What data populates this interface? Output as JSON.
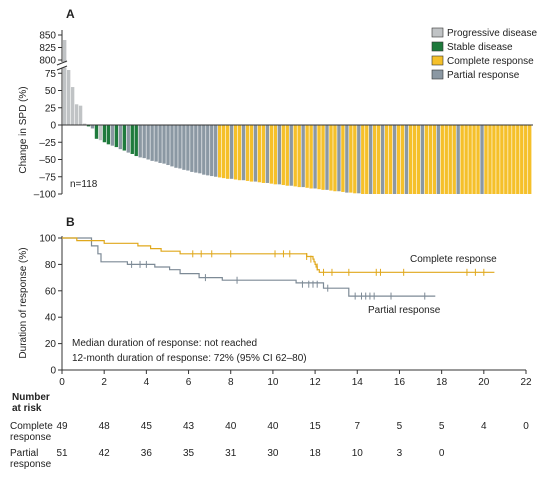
{
  "colors": {
    "progressive": "#c0c3c5",
    "stable": "#1e7a3c",
    "complete": "#f5c02a",
    "partial": "#8b98a3",
    "axis": "#333333",
    "cr_curve": "#e0a81c",
    "pr_curve": "#7d8a96"
  },
  "chart_data": [
    {
      "panel": "A",
      "type": "bar",
      "ylabel": "Change in SPD (%)",
      "y_ticks_lower": [
        "–100",
        "–75",
        "–50",
        "–25",
        "0",
        "25",
        "50",
        "75"
      ],
      "y_ticks_upper": [
        "800",
        "825",
        "850"
      ],
      "ylim_lower": [
        -100,
        90
      ],
      "ylim_upper": [
        795,
        855
      ],
      "axis_break": true,
      "annotation": "n=118",
      "legend_position": "top-right",
      "legend": [
        {
          "key": "progressive",
          "label": "Progressive disease"
        },
        {
          "key": "stable",
          "label": "Stable disease"
        },
        {
          "key": "complete",
          "label": "Complete response"
        },
        {
          "key": "partial",
          "label": "Partial response"
        }
      ],
      "bars": [
        {
          "v": 840,
          "c": "P"
        },
        {
          "v": 780,
          "c": "P"
        },
        {
          "v": 55,
          "c": "P"
        },
        {
          "v": 30,
          "c": "P"
        },
        {
          "v": 28,
          "c": "P"
        },
        {
          "v": 2,
          "c": "P"
        },
        {
          "v": -2,
          "c": "S"
        },
        {
          "v": -5,
          "c": "R"
        },
        {
          "v": -20,
          "c": "S"
        },
        {
          "v": -22,
          "c": "P"
        },
        {
          "v": -25,
          "c": "S"
        },
        {
          "v": -28,
          "c": "S"
        },
        {
          "v": -30,
          "c": "R"
        },
        {
          "v": -32,
          "c": "S"
        },
        {
          "v": -35,
          "c": "R"
        },
        {
          "v": -37,
          "c": "S"
        },
        {
          "v": -40,
          "c": "R"
        },
        {
          "v": -42,
          "c": "S"
        },
        {
          "v": -45,
          "c": "S"
        },
        {
          "v": -47,
          "c": "R"
        },
        {
          "v": -48,
          "c": "R"
        },
        {
          "v": -50,
          "c": "R"
        },
        {
          "v": -52,
          "c": "R"
        },
        {
          "v": -53,
          "c": "R"
        },
        {
          "v": -55,
          "c": "R"
        },
        {
          "v": -56,
          "c": "R"
        },
        {
          "v": -58,
          "c": "R"
        },
        {
          "v": -60,
          "c": "R"
        },
        {
          "v": -62,
          "c": "R"
        },
        {
          "v": -63,
          "c": "R"
        },
        {
          "v": -65,
          "c": "R"
        },
        {
          "v": -66,
          "c": "R"
        },
        {
          "v": -68,
          "c": "R"
        },
        {
          "v": -69,
          "c": "R"
        },
        {
          "v": -70,
          "c": "R"
        },
        {
          "v": -72,
          "c": "R"
        },
        {
          "v": -73,
          "c": "R"
        },
        {
          "v": -74,
          "c": "R"
        },
        {
          "v": -75,
          "c": "R"
        },
        {
          "v": -76,
          "c": "C"
        },
        {
          "v": -77,
          "c": "C"
        },
        {
          "v": -78,
          "c": "C"
        },
        {
          "v": -78,
          "c": "R"
        },
        {
          "v": -79,
          "c": "C"
        },
        {
          "v": -80,
          "c": "C"
        },
        {
          "v": -80,
          "c": "R"
        },
        {
          "v": -81,
          "c": "C"
        },
        {
          "v": -82,
          "c": "C"
        },
        {
          "v": -82,
          "c": "R"
        },
        {
          "v": -83,
          "c": "C"
        },
        {
          "v": -84,
          "c": "C"
        },
        {
          "v": -84,
          "c": "R"
        },
        {
          "v": -85,
          "c": "C"
        },
        {
          "v": -86,
          "c": "C"
        },
        {
          "v": -86,
          "c": "R"
        },
        {
          "v": -87,
          "c": "C"
        },
        {
          "v": -88,
          "c": "C"
        },
        {
          "v": -88,
          "c": "R"
        },
        {
          "v": -89,
          "c": "C"
        },
        {
          "v": -90,
          "c": "C"
        },
        {
          "v": -90,
          "c": "R"
        },
        {
          "v": -91,
          "c": "C"
        },
        {
          "v": -92,
          "c": "C"
        },
        {
          "v": -92,
          "c": "R"
        },
        {
          "v": -93,
          "c": "C"
        },
        {
          "v": -94,
          "c": "C"
        },
        {
          "v": -94,
          "c": "R"
        },
        {
          "v": -95,
          "c": "C"
        },
        {
          "v": -96,
          "c": "C"
        },
        {
          "v": -96,
          "c": "R"
        },
        {
          "v": -97,
          "c": "C"
        },
        {
          "v": -98,
          "c": "R"
        },
        {
          "v": -98,
          "c": "C"
        },
        {
          "v": -99,
          "c": "C"
        },
        {
          "v": -99,
          "c": "R"
        },
        {
          "v": -100,
          "c": "C"
        },
        {
          "v": -100,
          "c": "C"
        },
        {
          "v": -100,
          "c": "R"
        },
        {
          "v": -100,
          "c": "C"
        },
        {
          "v": -100,
          "c": "C"
        },
        {
          "v": -100,
          "c": "R"
        },
        {
          "v": -100,
          "c": "C"
        },
        {
          "v": -100,
          "c": "C"
        },
        {
          "v": -100,
          "c": "R"
        },
        {
          "v": -100,
          "c": "C"
        },
        {
          "v": -100,
          "c": "C"
        },
        {
          "v": -100,
          "c": "R"
        },
        {
          "v": -100,
          "c": "C"
        },
        {
          "v": -100,
          "c": "C"
        },
        {
          "v": -100,
          "c": "C"
        },
        {
          "v": -100,
          "c": "R"
        },
        {
          "v": -100,
          "c": "C"
        },
        {
          "v": -100,
          "c": "C"
        },
        {
          "v": -100,
          "c": "C"
        },
        {
          "v": -100,
          "c": "R"
        },
        {
          "v": -100,
          "c": "C"
        },
        {
          "v": -100,
          "c": "C"
        },
        {
          "v": -100,
          "c": "C"
        },
        {
          "v": -100,
          "c": "C"
        },
        {
          "v": -100,
          "c": "R"
        },
        {
          "v": -100,
          "c": "C"
        },
        {
          "v": -100,
          "c": "C"
        },
        {
          "v": -100,
          "c": "C"
        },
        {
          "v": -100,
          "c": "C"
        },
        {
          "v": -100,
          "c": "C"
        },
        {
          "v": -100,
          "c": "R"
        },
        {
          "v": -100,
          "c": "C"
        },
        {
          "v": -100,
          "c": "C"
        },
        {
          "v": -100,
          "c": "C"
        },
        {
          "v": -100,
          "c": "C"
        },
        {
          "v": -100,
          "c": "C"
        },
        {
          "v": -100,
          "c": "C"
        },
        {
          "v": -100,
          "c": "C"
        },
        {
          "v": -100,
          "c": "C"
        },
        {
          "v": -100,
          "c": "C"
        },
        {
          "v": -100,
          "c": "C"
        },
        {
          "v": -100,
          "c": "C"
        },
        {
          "v": -100,
          "c": "C"
        }
      ]
    },
    {
      "panel": "B",
      "type": "line",
      "ylabel": "Duration of response (%)",
      "xlim": [
        0,
        22
      ],
      "ylim": [
        0,
        100
      ],
      "x_ticks": [
        "0",
        "2",
        "4",
        "6",
        "8",
        "10",
        "12",
        "14",
        "16",
        "18",
        "20",
        "22"
      ],
      "y_ticks": [
        "0",
        "20",
        "40",
        "60",
        "80",
        "100"
      ],
      "annotation_lines": [
        "Median duration of response: not reached",
        "12-month duration of response: 72% (95% CI 62–80)"
      ],
      "series": [
        {
          "name": "Complete response",
          "key": "complete",
          "step": [
            [
              0,
              100
            ],
            [
              0.6,
              100
            ],
            [
              0.7,
              98
            ],
            [
              1.9,
              98
            ],
            [
              2.0,
              96
            ],
            [
              3.5,
              96
            ],
            [
              3.6,
              94
            ],
            [
              4.1,
              94
            ],
            [
              4.2,
              92
            ],
            [
              4.6,
              92
            ],
            [
              4.7,
              90
            ],
            [
              5.5,
              90
            ],
            [
              5.6,
              88
            ],
            [
              11.5,
              88
            ],
            [
              11.6,
              86
            ],
            [
              11.8,
              86
            ],
            [
              11.9,
              84
            ],
            [
              11.95,
              82
            ],
            [
              12.0,
              80
            ],
            [
              12.05,
              78
            ],
            [
              12.1,
              76
            ],
            [
              12.2,
              74
            ],
            [
              20.5,
              74
            ]
          ],
          "censors": [
            [
              6.2,
              88
            ],
            [
              6.6,
              88
            ],
            [
              7.1,
              88
            ],
            [
              8.0,
              88
            ],
            [
              10.1,
              88
            ],
            [
              10.5,
              88
            ],
            [
              10.8,
              88
            ],
            [
              11.6,
              86
            ],
            [
              11.8,
              84
            ],
            [
              12.1,
              78
            ],
            [
              12.4,
              74
            ],
            [
              12.8,
              74
            ],
            [
              13.6,
              74
            ],
            [
              14.9,
              74
            ],
            [
              15.1,
              74
            ],
            [
              16.2,
              74
            ],
            [
              19.2,
              74
            ],
            [
              19.6,
              74
            ],
            [
              20.0,
              74
            ]
          ]
        },
        {
          "name": "Partial response",
          "key": "partial",
          "step": [
            [
              0,
              100
            ],
            [
              1.3,
              100
            ],
            [
              1.4,
              94
            ],
            [
              1.6,
              94
            ],
            [
              1.7,
              88
            ],
            [
              1.8,
              88
            ],
            [
              1.85,
              82
            ],
            [
              3.0,
              82
            ],
            [
              3.1,
              80
            ],
            [
              4.3,
              80
            ],
            [
              4.4,
              78
            ],
            [
              5.0,
              78
            ],
            [
              5.1,
              76
            ],
            [
              5.5,
              76
            ],
            [
              5.6,
              73
            ],
            [
              6.4,
              73
            ],
            [
              6.5,
              70
            ],
            [
              7.5,
              70
            ],
            [
              7.6,
              68
            ],
            [
              11.0,
              68
            ],
            [
              11.1,
              66
            ],
            [
              12.3,
              66
            ],
            [
              12.4,
              62
            ],
            [
              13.5,
              62
            ],
            [
              13.6,
              56
            ],
            [
              17.7,
              56
            ]
          ],
          "censors": [
            [
              3.3,
              80
            ],
            [
              3.7,
              80
            ],
            [
              4.0,
              80
            ],
            [
              6.8,
              70
            ],
            [
              8.3,
              68
            ],
            [
              11.4,
              65
            ],
            [
              11.7,
              65
            ],
            [
              11.9,
              65
            ],
            [
              12.1,
              65
            ],
            [
              12.6,
              62
            ],
            [
              13.9,
              56
            ],
            [
              14.2,
              56
            ],
            [
              14.4,
              56
            ],
            [
              14.6,
              56
            ],
            [
              14.8,
              56
            ],
            [
              15.6,
              56
            ],
            [
              17.2,
              56
            ]
          ]
        }
      ],
      "at_risk": {
        "header_line1": "Number",
        "header_line2": "at risk",
        "rows": [
          {
            "label_line1": "Complete",
            "label_line2": "response",
            "values": [
              "49",
              "48",
              "45",
              "43",
              "40",
              "40",
              "15",
              "7",
              "5",
              "5",
              "4",
              "0"
            ]
          },
          {
            "label_line1": "Partial",
            "label_line2": "response",
            "values": [
              "51",
              "42",
              "36",
              "35",
              "31",
              "30",
              "18",
              "10",
              "3",
              "0"
            ]
          }
        ]
      }
    }
  ]
}
